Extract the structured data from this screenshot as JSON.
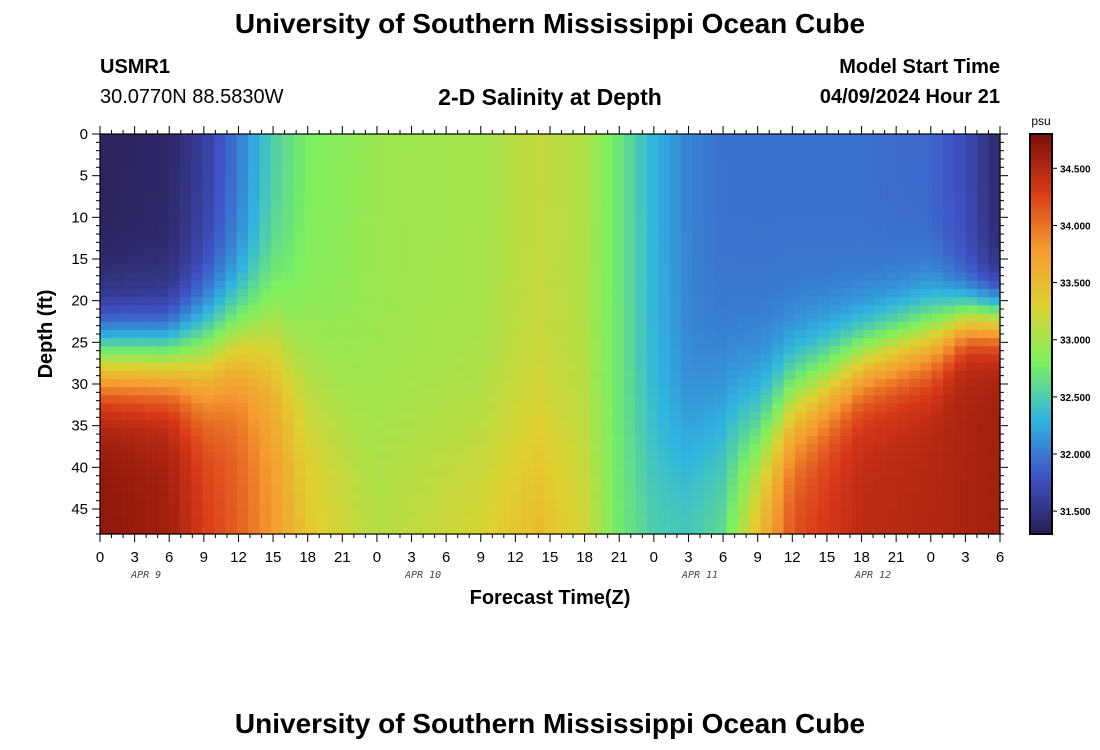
{
  "header": {
    "title": "University of Southern Mississippi Ocean Cube",
    "station_id": "USMR1",
    "station_coords": "30.0770N  88.5830W",
    "subtitle": "2-D Salinity at Depth",
    "model_label": "Model Start Time",
    "model_time": "04/09/2024 Hour 21"
  },
  "footer": {
    "title": "University of Southern Mississippi Ocean Cube"
  },
  "chart_data": {
    "type": "heatmap",
    "title": "2-D Salinity at Depth",
    "xlabel": "Forecast Time(Z)",
    "ylabel": "Depth (ft)",
    "x_ticks": [
      "0",
      "3",
      "6",
      "9",
      "12",
      "15",
      "18",
      "21",
      "0",
      "3",
      "6",
      "9",
      "12",
      "15",
      "18",
      "21",
      "0",
      "3",
      "6",
      "9",
      "12",
      "15",
      "18",
      "21",
      "0",
      "3",
      "6"
    ],
    "x_hours_range": [
      0,
      78
    ],
    "date_labels": [
      {
        "label": "APR 9",
        "hour": 4
      },
      {
        "label": "APR 10",
        "hour": 28
      },
      {
        "label": "APR 11",
        "hour": 52
      },
      {
        "label": "APR 12",
        "hour": 67
      }
    ],
    "y_ticks": [
      0,
      5,
      10,
      15,
      20,
      25,
      30,
      35,
      40,
      45
    ],
    "ylim": [
      0,
      48
    ],
    "y_inverted": true,
    "colorbar": {
      "unit": "psu",
      "range": [
        31.3,
        34.8
      ],
      "ticks": [
        "31.500",
        "32.000",
        "32.500",
        "33.000",
        "33.500",
        "34.000",
        "34.500"
      ],
      "tick_values": [
        31.5,
        32.0,
        32.5,
        33.0,
        33.5,
        34.0,
        34.5
      ],
      "colors": [
        "#2a1e52",
        "#3f52c6",
        "#30b5e0",
        "#7cf060",
        "#e0d030",
        "#f59a30",
        "#d83818",
        "#7a1008"
      ]
    },
    "grid_cells": {
      "columns": 79,
      "rows": 49
    },
    "data_description": "salinity (psu) by forecast hour (columns) and depth (rows); values read from color",
    "profiles": [
      {
        "hour": 0,
        "surface": 31.35,
        "deep": 34.7,
        "halocline_depth": 27,
        "thickness": 3
      },
      {
        "hour": 6,
        "surface": 31.4,
        "deep": 34.6,
        "halocline_depth": 27,
        "thickness": 3
      },
      {
        "hour": 9,
        "surface": 31.6,
        "deep": 34.3,
        "halocline_depth": 26,
        "thickness": 4
      },
      {
        "hour": 12,
        "surface": 32.0,
        "deep": 34.1,
        "halocline_depth": 24,
        "thickness": 4
      },
      {
        "hour": 15,
        "surface": 32.5,
        "deep": 33.8,
        "halocline_depth": 24,
        "thickness": 5
      },
      {
        "hour": 18,
        "surface": 32.8,
        "deep": 33.4,
        "halocline_depth": 30,
        "thickness": 6
      },
      {
        "hour": 24,
        "surface": 32.95,
        "deep": 33.1,
        "halocline_depth": 38,
        "thickness": 6
      },
      {
        "hour": 33,
        "surface": 33.0,
        "deep": 33.3,
        "halocline_depth": 38,
        "thickness": 6
      },
      {
        "hour": 38,
        "surface": 33.15,
        "deep": 33.55,
        "halocline_depth": 38,
        "thickness": 6
      },
      {
        "hour": 42,
        "surface": 33.05,
        "deep": 33.25,
        "halocline_depth": 38,
        "thickness": 6
      },
      {
        "hour": 45,
        "surface": 32.7,
        "deep": 32.75,
        "halocline_depth": 40,
        "thickness": 6
      },
      {
        "hour": 48,
        "surface": 32.3,
        "deep": 32.55,
        "halocline_depth": 40,
        "thickness": 6
      },
      {
        "hour": 51,
        "surface": 32.05,
        "deep": 32.5,
        "halocline_depth": 38,
        "thickness": 5
      },
      {
        "hour": 54,
        "surface": 31.95,
        "deep": 32.7,
        "halocline_depth": 36,
        "thickness": 6
      },
      {
        "hour": 57,
        "surface": 31.95,
        "deep": 33.6,
        "halocline_depth": 37,
        "thickness": 5
      },
      {
        "hour": 60,
        "surface": 31.95,
        "deep": 34.2,
        "halocline_depth": 32,
        "thickness": 4
      },
      {
        "hour": 66,
        "surface": 31.95,
        "deep": 34.45,
        "halocline_depth": 27,
        "thickness": 3
      },
      {
        "hour": 72,
        "surface": 31.9,
        "deep": 34.5,
        "halocline_depth": 24,
        "thickness": 3
      },
      {
        "hour": 75,
        "surface": 31.75,
        "deep": 34.55,
        "halocline_depth": 22,
        "thickness": 2
      },
      {
        "hour": 78,
        "surface": 31.4,
        "deep": 34.6,
        "halocline_depth": 22,
        "thickness": 2
      }
    ]
  }
}
